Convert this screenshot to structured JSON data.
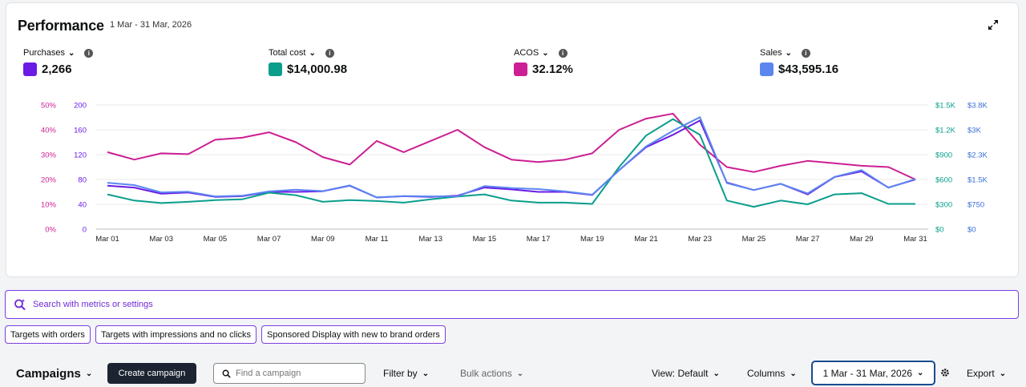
{
  "header": {
    "title": "Performance",
    "date_range": "1 Mar - 31 Mar, 2026"
  },
  "metrics": [
    {
      "label": "Purchases",
      "value": "2,266",
      "color": "#6a1be6"
    },
    {
      "label": "Total cost",
      "value": "$14,000.98",
      "color": "#0a9e8c"
    },
    {
      "label": "ACOS",
      "value": "32.12%",
      "color": "#cc1f94"
    },
    {
      "label": "Sales",
      "value": "$43,595.16",
      "color": "#5b86f0"
    }
  ],
  "icons": {
    "expand": "expand-icon",
    "info": "info-icon",
    "search": "search-sparkle-icon",
    "gear": "gear-icon"
  },
  "chart_data": {
    "type": "line",
    "x": [
      "Mar 01",
      "Mar 02",
      "Mar 03",
      "Mar 04",
      "Mar 05",
      "Mar 06",
      "Mar 07",
      "Mar 08",
      "Mar 09",
      "Mar 10",
      "Mar 11",
      "Mar 12",
      "Mar 13",
      "Mar 14",
      "Mar 15",
      "Mar 16",
      "Mar 17",
      "Mar 18",
      "Mar 19",
      "Mar 20",
      "Mar 21",
      "Mar 22",
      "Mar 23",
      "Mar 24",
      "Mar 25",
      "Mar 26",
      "Mar 27",
      "Mar 28",
      "Mar 29",
      "Mar 30",
      "Mar 31"
    ],
    "x_tick_labels": [
      "Mar 01",
      "Mar 03",
      "Mar 05",
      "Mar 07",
      "Mar 09",
      "Mar 11",
      "Mar 13",
      "Mar 15",
      "Mar 17",
      "Mar 19",
      "Mar 21",
      "Mar 23",
      "Mar 25",
      "Mar 27",
      "Mar 29",
      "Mar 31"
    ],
    "axes": {
      "acos": {
        "ticks": [
          "0%",
          "10%",
          "20%",
          "30%",
          "40%",
          "50%"
        ],
        "range": [
          0,
          50
        ],
        "color": "#cc1f94"
      },
      "purchases": {
        "ticks": [
          "0",
          "40",
          "80",
          "120",
          "160",
          "200"
        ],
        "range": [
          0,
          200
        ],
        "color": "#6a1be6"
      },
      "cost": {
        "ticks": [
          "$0",
          "$300",
          "$600",
          "$900",
          "$1.2K",
          "$1.5K"
        ],
        "range": [
          0,
          1500
        ],
        "color": "#0a9e8c"
      },
      "sales": {
        "ticks": [
          "$0",
          "$750",
          "$1.5K",
          "$2.3K",
          "$3K",
          "$3.8K"
        ],
        "range": [
          0,
          3750
        ],
        "color": "#3b6fd8"
      }
    },
    "series": [
      {
        "name": "ACOS",
        "axis": "acos",
        "color": "#cc1f94",
        "values": [
          31,
          28,
          30.5,
          30.2,
          36,
          36.8,
          39,
          35,
          29,
          26,
          35.5,
          31,
          35.5,
          40,
          33,
          28,
          27,
          28,
          30.5,
          40,
          44.5,
          46.5,
          34,
          25,
          23,
          25.5,
          27.5,
          26.5,
          25.5,
          25,
          20
        ]
      },
      {
        "name": "Purchases",
        "axis": "purchases",
        "color": "#6a1be6",
        "values": [
          70,
          67,
          57,
          59,
          52,
          53,
          60,
          60,
          61,
          70,
          51,
          53,
          52,
          54,
          67,
          64,
          60,
          60,
          55,
          95,
          132,
          152,
          175,
          75,
          63,
          73,
          56,
          84,
          93,
          67,
          80
        ]
      },
      {
        "name": "Total cost",
        "axis": "cost",
        "color": "#0a9e8c",
        "values": [
          420,
          345,
          315,
          330,
          350,
          360,
          440,
          410,
          330,
          350,
          340,
          320,
          360,
          395,
          420,
          345,
          320,
          320,
          305,
          750,
          1130,
          1330,
          1140,
          345,
          270,
          345,
          300,
          420,
          435,
          305,
          305
        ]
      },
      {
        "name": "Sales",
        "axis": "sales",
        "color": "#5b86f0",
        "values": [
          1400,
          1330,
          1110,
          1130,
          990,
          1010,
          1140,
          1190,
          1150,
          1320,
          960,
          1000,
          990,
          990,
          1300,
          1240,
          1210,
          1140,
          1040,
          1780,
          2500,
          2970,
          3380,
          1390,
          1180,
          1370,
          1080,
          1580,
          1780,
          1250,
          1510
        ]
      }
    ]
  },
  "search": {
    "placeholder": "Search with metrics or settings"
  },
  "chips": [
    "Targets with orders",
    "Targets with impressions and no clicks",
    "Sponsored Display with new to brand orders"
  ],
  "toolbar": {
    "campaigns": "Campaigns",
    "create": "Create campaign",
    "find_placeholder": "Find a campaign",
    "filter": "Filter by",
    "bulk": "Bulk actions",
    "view": "View: Default",
    "columns": "Columns",
    "date_range": "1 Mar - 31 Mar, 2026",
    "export": "Export"
  }
}
